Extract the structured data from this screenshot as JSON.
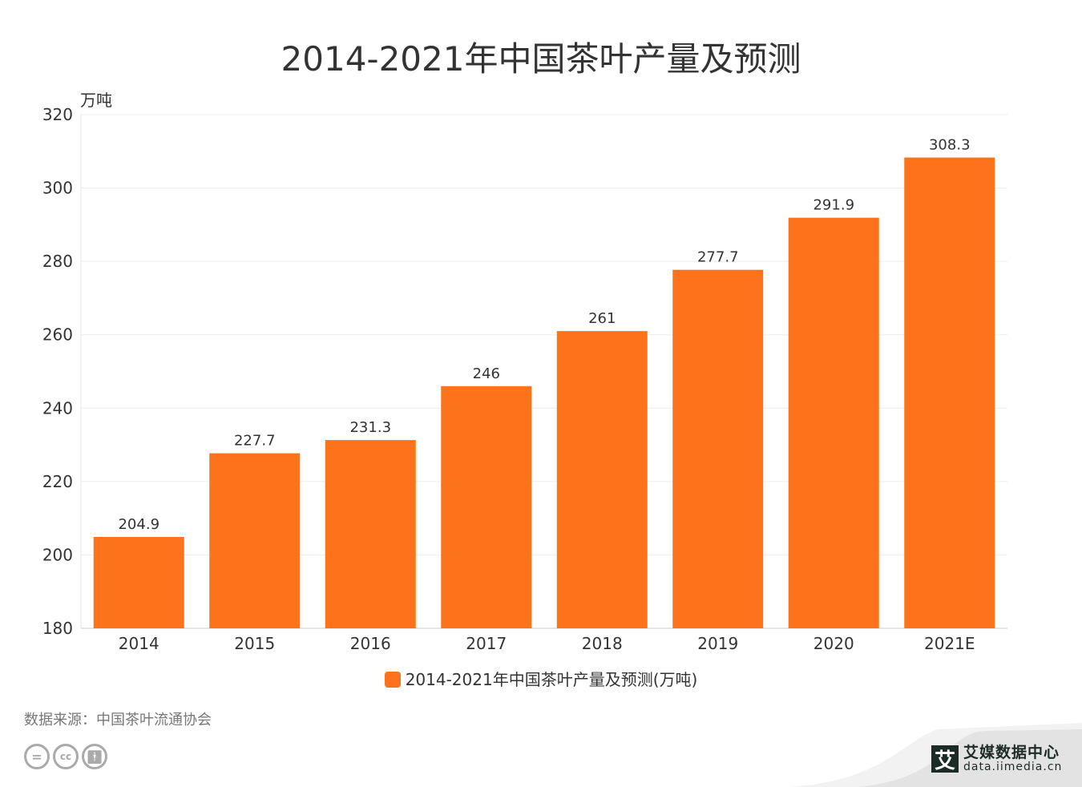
{
  "chart_data": {
    "type": "bar",
    "title": "2014-2021年中国茶叶产量及预测",
    "ylabel": "万吨",
    "xlabel": "",
    "categories": [
      "2014",
      "2015",
      "2016",
      "2017",
      "2018",
      "2019",
      "2020",
      "2021E"
    ],
    "series": [
      {
        "name": "2014-2021年中国茶叶产量及预测(万吨)",
        "values": [
          204.9,
          227.7,
          231.3,
          246,
          261,
          277.7,
          291.9,
          308.3
        ],
        "color": "#fc731c"
      }
    ],
    "data_labels": [
      "204.9",
      "227.7",
      "231.3",
      "246",
      "261",
      "277.7",
      "291.9",
      "308.3"
    ],
    "ylim": [
      180,
      320
    ],
    "yticks": [
      "180",
      "200",
      "220",
      "240",
      "260",
      "280",
      "300",
      "320"
    ],
    "grid": true,
    "legend": "bottom"
  },
  "footer": {
    "source": "数据来源：中国茶叶流通协会",
    "license_icons": [
      "equals-icon",
      "cc-icon",
      "person-icon"
    ],
    "logo_mark": "艾",
    "logo_name": "艾媒数据中心",
    "logo_url": "data.iimedia.cn"
  }
}
